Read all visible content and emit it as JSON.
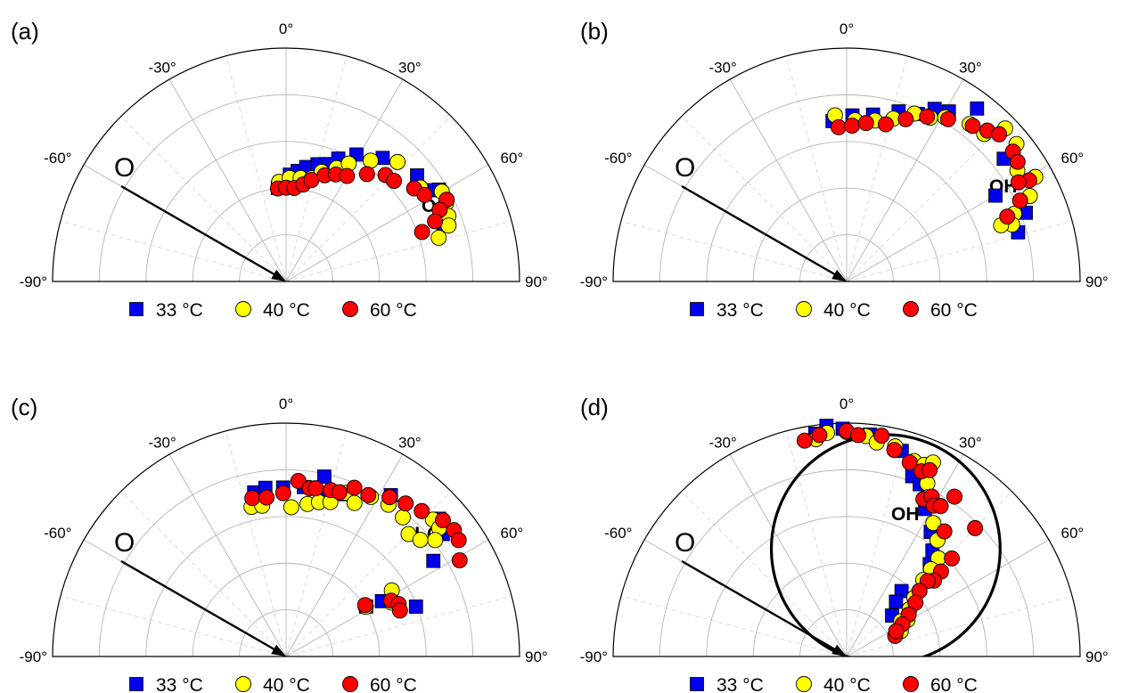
{
  "colors": {
    "s33": "#0000ee",
    "s40": "#ffff00",
    "s60": "#ff0000",
    "outline": "#000000"
  },
  "legend": [
    {
      "label": "33 °C",
      "marker": "square",
      "color": "#0000ee"
    },
    {
      "label": "40 °C",
      "marker": "circle",
      "color": "#ffff00"
    },
    {
      "label": "60 °C",
      "marker": "circle",
      "color": "#ff0000"
    }
  ],
  "panels": [
    {
      "letter": "(a)",
      "origin_label": "O",
      "species": "O",
      "species_sub": "",
      "species_tail": ""
    },
    {
      "letter": "(b)",
      "origin_label": "O",
      "species": "OH",
      "species_sub": "",
      "species_tail": ""
    },
    {
      "letter": "(c)",
      "origin_label": "O",
      "species": "H",
      "species_sub": "2",
      "species_tail": "O"
    },
    {
      "letter": "(d)",
      "origin_label": "O",
      "species": "OH",
      "species_sub": "",
      "species_tail": ""
    }
  ],
  "chart_data": [
    {
      "type": "scatter",
      "panel": "(a)",
      "coordinate_system": "polar half-plane",
      "angular_ticks": [
        "-90°",
        "-60°",
        "-30°",
        "0°",
        "30°",
        "60°",
        "90°"
      ],
      "angular_range_deg": [
        -90,
        90
      ],
      "radial_range": [
        0,
        5
      ],
      "grid": true,
      "arrow_angle_deg": -60,
      "legend_position": "bottom",
      "series": [
        {
          "name": "33 °C",
          "marker": "square",
          "points": [
            [
              -5,
              2.01
            ],
            [
              2,
              2.29
            ],
            [
              6,
              2.38
            ],
            [
              10,
              2.49
            ],
            [
              15,
              2.6
            ],
            [
              19,
              2.66
            ],
            [
              23,
              2.86
            ],
            [
              29,
              3.11
            ],
            [
              38,
              3.36
            ],
            [
              51,
              3.61
            ],
            [
              59,
              3.82
            ],
            [
              58,
              3.69
            ],
            [
              70,
              3.59
            ]
          ]
        },
        {
          "name": "40 °C",
          "marker": "circle",
          "points": [
            [
              -4,
              2.14
            ],
            [
              2,
              2.22
            ],
            [
              8,
              2.24
            ],
            [
              14,
              2.28
            ],
            [
              18,
              2.47
            ],
            [
              24,
              2.66
            ],
            [
              28,
              2.86
            ],
            [
              35,
              3.16
            ],
            [
              43,
              3.5
            ],
            [
              55,
              3.51
            ],
            [
              60,
              3.85
            ],
            [
              64,
              3.81
            ],
            [
              68,
              3.75
            ],
            [
              71,
              3.68
            ],
            [
              74,
              3.4
            ]
          ]
        },
        {
          "name": "60 °C",
          "marker": "circle",
          "points": [
            [
              -5,
              2.0
            ],
            [
              0,
              2.01
            ],
            [
              5,
              2.01
            ],
            [
              10,
              2.11
            ],
            [
              14,
              2.24
            ],
            [
              20,
              2.42
            ],
            [
              25,
              2.53
            ],
            [
              30,
              2.61
            ],
            [
              37,
              2.88
            ],
            [
              43,
              3.12
            ],
            [
              47,
              3.16
            ],
            [
              54,
              3.39
            ],
            [
              58,
              3.5
            ],
            [
              63,
              3.86
            ],
            [
              65,
              3.63
            ],
            [
              68,
              3.44
            ],
            [
              70,
              3.1
            ]
          ]
        }
      ]
    },
    {
      "type": "scatter",
      "panel": "(b)",
      "coordinate_system": "polar half-plane",
      "angular_ticks": [
        "-90°",
        "-60°",
        "-30°",
        "0°",
        "30°",
        "60°",
        "90°"
      ],
      "angular_range_deg": [
        -90,
        90
      ],
      "radial_range": [
        0,
        5
      ],
      "grid": true,
      "arrow_angle_deg": -60,
      "legend_position": "bottom",
      "series": [
        {
          "name": "33 °C",
          "marker": "square",
          "points": [
            [
              -5,
              3.45
            ],
            [
              2,
              3.56
            ],
            [
              9,
              3.62
            ],
            [
              17,
              3.81
            ],
            [
              23,
              3.9
            ],
            [
              27,
              4.15
            ],
            [
              31,
              4.25
            ],
            [
              37,
              4.64
            ],
            [
              52,
              4.27
            ],
            [
              69,
              4.11
            ],
            [
              60,
              3.68
            ],
            [
              74,
              3.82
            ]
          ]
        },
        {
          "name": "40 °C",
          "marker": "circle",
          "points": [
            [
              -4,
              3.57
            ],
            [
              3,
              3.46
            ],
            [
              10,
              3.5
            ],
            [
              16,
              3.63
            ],
            [
              22,
              3.88
            ],
            [
              27,
              3.94
            ],
            [
              31,
              4.1
            ],
            [
              38,
              4.28
            ],
            [
              43,
              4.32
            ],
            [
              46,
              4.72
            ],
            [
              51,
              4.68
            ],
            [
              57,
              4.36
            ],
            [
              61,
              4.62
            ],
            [
              65,
              4.33
            ],
            [
              68,
              3.87
            ],
            [
              71,
              3.75
            ],
            [
              70,
              3.52
            ]
          ]
        },
        {
          "name": "60 °C",
          "marker": "circle",
          "points": [
            [
              -3,
              3.31
            ],
            [
              2,
              3.34
            ],
            [
              7,
              3.42
            ],
            [
              14,
              3.47
            ],
            [
              20,
              3.7
            ],
            [
              26,
              3.93
            ],
            [
              32,
              4.1
            ],
            [
              39,
              4.29
            ],
            [
              43,
              4.42
            ],
            [
              46,
              4.54
            ],
            [
              52,
              4.52
            ],
            [
              55,
              4.47
            ],
            [
              61,
              4.47
            ],
            [
              60,
              4.25
            ],
            [
              65,
              4.1
            ],
            [
              68,
              3.71
            ]
          ]
        }
      ]
    },
    {
      "type": "scatter",
      "panel": "(c)",
      "coordinate_system": "polar half-plane",
      "angular_ticks": [
        "-90°",
        "-60°",
        "-30°",
        "0°",
        "30°",
        "60°",
        "90°"
      ],
      "angular_range_deg": [
        -90,
        90
      ],
      "radial_range": [
        0,
        5
      ],
      "grid": true,
      "arrow_angle_deg": -60,
      "legend_position": "bottom",
      "series": [
        {
          "name": "33 °C",
          "marker": "square",
          "points": [
            [
              -11,
              3.58
            ],
            [
              -7,
              3.64
            ],
            [
              -1,
              3.62
            ],
            [
              6,
              3.65
            ],
            [
              12,
              3.94
            ],
            [
              14,
              3.53
            ],
            [
              20,
              3.7
            ],
            [
              33,
              4.12
            ],
            [
              48,
              4.41
            ],
            [
              52,
              4.26
            ],
            [
              57,
              3.76
            ],
            [
              69,
              2.98
            ],
            [
              60,
              2.37
            ],
            [
              58,
              2.02
            ]
          ]
        },
        {
          "name": "40 °C",
          "marker": "circle",
          "points": [
            [
              -13,
              3.29
            ],
            [
              -9,
              3.27
            ],
            [
              2,
              3.2
            ],
            [
              8,
              3.3
            ],
            [
              12,
              3.38
            ],
            [
              16,
              3.44
            ],
            [
              20,
              3.73
            ],
            [
              24,
              3.6
            ],
            [
              28,
              3.87
            ],
            [
              34,
              3.92
            ],
            [
              40,
              3.89
            ],
            [
              45,
              3.71
            ],
            [
              47,
              4.3
            ],
            [
              50,
              4.28
            ],
            [
              52,
              4.05
            ],
            [
              49,
              3.81
            ],
            [
              58,
              2.67
            ],
            [
              63,
              2.54
            ],
            [
              58,
              2.01
            ]
          ]
        },
        {
          "name": "60 °C",
          "marker": "circle",
          "points": [
            [
              -12,
              3.47
            ],
            [
              -7,
              3.43
            ],
            [
              -1,
              3.5
            ],
            [
              4,
              3.77
            ],
            [
              8,
              3.64
            ],
            [
              10,
              3.66
            ],
            [
              15,
              3.69
            ],
            [
              18,
              3.7
            ],
            [
              22,
              3.9
            ],
            [
              27,
              3.88
            ],
            [
              33,
              4.07
            ],
            [
              38,
              4.16
            ],
            [
              43,
              4.26
            ],
            [
              49,
              4.45
            ],
            [
              53,
              4.5
            ],
            [
              56,
              4.46
            ],
            [
              61,
              4.25
            ],
            [
              62,
              2.55
            ],
            [
              65,
              2.66
            ],
            [
              68,
              2.63
            ],
            [
              57,
              2.02
            ]
          ]
        }
      ]
    },
    {
      "type": "scatter",
      "panel": "(d)",
      "coordinate_system": "polar half-plane",
      "angular_ticks": [
        "-90°",
        "-60°",
        "-30°",
        "0°",
        "30°",
        "60°",
        "90°"
      ],
      "angular_range_deg": [
        -90,
        90
      ],
      "radial_range": [
        0,
        5
      ],
      "grid": true,
      "arrow_angle_deg": -60,
      "legend_position": "bottom",
      "series": [
        {
          "name": "33 °C",
          "marker": "square",
          "points": [
            [
              -8,
              4.82
            ],
            [
              -5,
              4.96
            ],
            [
              -1,
              4.88
            ],
            [
              6,
              4.78
            ],
            [
              15,
              4.56
            ],
            [
              22,
              4.23
            ],
            [
              20,
              4.11
            ],
            [
              23,
              4.01
            ],
            [
              28,
              3.58
            ],
            [
              34,
              3.22
            ],
            [
              39,
              2.92
            ],
            [
              42,
              2.66
            ],
            [
              40,
              1.83
            ],
            [
              42,
              1.58
            ],
            [
              48,
              1.31
            ]
          ]
        },
        {
          "name": "40 °C",
          "marker": "circle",
          "points": [
            [
              -8,
              4.7
            ],
            [
              -5,
              4.81
            ],
            [
              0,
              4.81
            ],
            [
              5,
              4.74
            ],
            [
              8,
              4.63
            ],
            [
              13,
              4.62
            ],
            [
              19,
              4.43
            ],
            [
              22,
              4.43
            ],
            [
              24,
              4.55
            ],
            [
              25,
              4.09
            ],
            [
              27,
              3.83
            ],
            [
              30,
              3.74
            ],
            [
              33,
              3.41
            ],
            [
              38,
              3.16
            ],
            [
              43,
              2.88
            ],
            [
              44,
              2.6
            ],
            [
              45,
              2.32
            ],
            [
              49,
              1.92
            ],
            [
              53,
              1.69
            ],
            [
              57,
              1.39
            ],
            [
              59,
              1.52
            ],
            [
              65,
              1.28
            ]
          ]
        },
        {
          "name": "60 °C",
          "marker": "circle",
          "points": [
            [
              -11,
              4.71
            ],
            [
              -7,
              4.78
            ],
            [
              0,
              4.83
            ],
            [
              3,
              4.75
            ],
            [
              9,
              4.79
            ],
            [
              13,
              4.54
            ],
            [
              18,
              4.37
            ],
            [
              22,
              4.28
            ],
            [
              24,
              4.37
            ],
            [
              26,
              3.75
            ],
            [
              28,
              3.88
            ],
            [
              30,
              3.73
            ],
            [
              32,
              3.8
            ],
            [
              34,
              4.13
            ],
            [
              38,
              3.4
            ],
            [
              45,
              3.89
            ],
            [
              47,
              3.08
            ],
            [
              48,
              2.72
            ],
            [
              49,
              2.48
            ],
            [
              47,
              2.37
            ],
            [
              48,
              2.1
            ],
            [
              52,
              1.87
            ],
            [
              56,
              1.6
            ],
            [
              60,
              1.38
            ],
            [
              67,
              1.13
            ],
            [
              63,
              1.19
            ]
          ]
        }
      ]
    }
  ]
}
